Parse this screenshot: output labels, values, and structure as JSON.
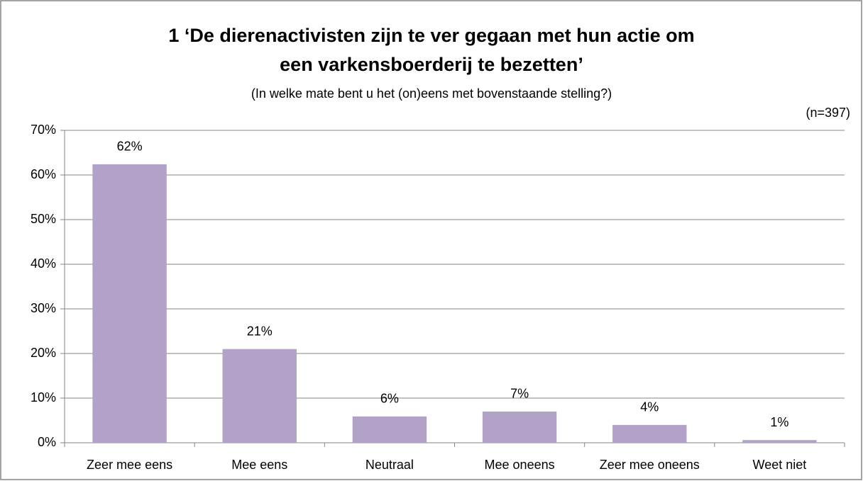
{
  "chart_data": {
    "type": "bar",
    "title": [
      "1 ‘De dierenactivisten zijn te ver gegaan met hun actie om",
      "een varkensboerderij te bezetten’"
    ],
    "subtitle": "(In welke mate bent u het (on)eens met bovenstaande stelling?)",
    "annotation": "(n=397)",
    "categories": [
      "Zeer mee eens",
      "Mee eens",
      "Neutraal",
      "Mee oneens",
      "Zeer mee oneens",
      "Weet niet"
    ],
    "values": [
      62.4,
      21,
      5.9,
      7,
      4,
      0.6
    ],
    "value_labels": [
      "62%",
      "21%",
      "6%",
      "7%",
      "4%",
      "1%"
    ],
    "color": "#b3a2c7",
    "ylim": [
      0,
      70
    ],
    "yticks": [
      {
        "value": 0,
        "label": "0%"
      },
      {
        "value": 10,
        "label": "10%"
      },
      {
        "value": 20,
        "label": "20%"
      },
      {
        "value": 30,
        "label": "30%"
      },
      {
        "value": 40,
        "label": "40%"
      },
      {
        "value": 50,
        "label": "50%"
      },
      {
        "value": 60,
        "label": "60%"
      },
      {
        "value": 70,
        "label": "70%"
      }
    ],
    "grid": true
  }
}
